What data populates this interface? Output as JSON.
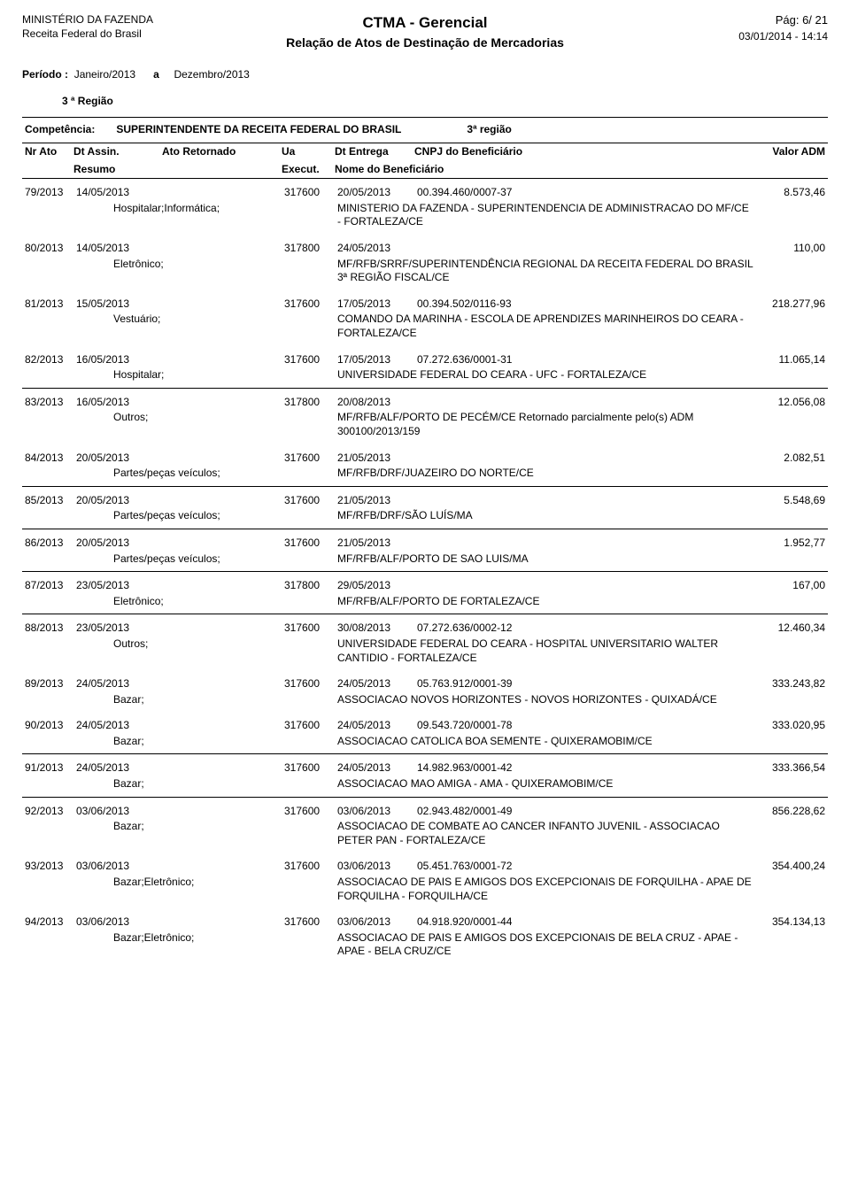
{
  "header": {
    "ministry": "MINISTÉRIO DA FAZENDA",
    "dept": "Receita Federal do Brasil",
    "title": "CTMA - Gerencial",
    "subtitle": "Relação de Atos de Destinação de Mercadorias",
    "page_label": "Pág:",
    "page_value": "6/ 21",
    "datetime": "03/01/2014 - 14:14"
  },
  "period": {
    "label": "Período :",
    "from": "Janeiro/2013",
    "conj": "a",
    "to": "Dezembro/2013"
  },
  "region_title": "3 ª Região",
  "competencia": {
    "label": "Competência:",
    "value": "SUPERINTENDENTE DA RECEITA FEDERAL DO BRASIL",
    "region": "3ª região"
  },
  "cols": {
    "nrato": "Nr Ato",
    "dtassin": "Dt Assin.",
    "retornado": "Ato Retornado",
    "ua": "Ua",
    "dtentrega": "Dt Entrega",
    "cnpj": "CNPJ do Beneficiário",
    "valor": "Valor ADM",
    "resumo": "Resumo",
    "execut": "Execut.",
    "nome": "Nome do Beneficiário"
  },
  "groups": [
    {
      "rule_after": false,
      "records": [
        {
          "nrato": "79/2013",
          "dtassin": "14/05/2013",
          "ua": "317600",
          "dtentrega": "20/05/2013",
          "cnpj": "00.394.460/0007-37",
          "valor": "8.573,46",
          "resumo": "Hospitalar;Informática;",
          "nome": "MINISTERIO DA FAZENDA - SUPERINTENDENCIA DE ADMINISTRACAO DO MF/CE - FORTALEZA/CE"
        },
        {
          "nrato": "80/2013",
          "dtassin": "14/05/2013",
          "ua": "317800",
          "dtentrega": "24/05/2013",
          "cnpj": "",
          "valor": "110,00",
          "resumo": "Eletrônico;",
          "nome": "MF/RFB/SRRF/SUPERINTENDÊNCIA REGIONAL DA RECEITA FEDERAL DO BRASIL 3ª REGIÃO FISCAL/CE"
        },
        {
          "nrato": "81/2013",
          "dtassin": "15/05/2013",
          "ua": "317600",
          "dtentrega": "17/05/2013",
          "cnpj": "00.394.502/0116-93",
          "valor": "218.277,96",
          "resumo": "Vestuário;",
          "nome": "COMANDO DA MARINHA - ESCOLA DE APRENDIZES MARINHEIROS DO CEARA - FORTALEZA/CE"
        },
        {
          "nrato": "82/2013",
          "dtassin": "16/05/2013",
          "ua": "317600",
          "dtentrega": "17/05/2013",
          "cnpj": "07.272.636/0001-31",
          "valor": "11.065,14",
          "resumo": "Hospitalar;",
          "nome": "UNIVERSIDADE FEDERAL DO CEARA - UFC - FORTALEZA/CE"
        }
      ]
    },
    {
      "rule_after": true,
      "records": [
        {
          "nrato": "83/2013",
          "dtassin": "16/05/2013",
          "ua": "317800",
          "dtentrega": "20/08/2013",
          "cnpj": "",
          "valor": "12.056,08",
          "resumo": "Outros;",
          "nome": "MF/RFB/ALF/PORTO DE PECÉM/CE Retornado parcialmente pelo(s) ADM 300100/2013/159"
        },
        {
          "nrato": "84/2013",
          "dtassin": "20/05/2013",
          "ua": "317600",
          "dtentrega": "21/05/2013",
          "cnpj": "",
          "valor": "2.082,51",
          "resumo": "Partes/peças veículos;",
          "nome": "MF/RFB/DRF/JUAZEIRO DO NORTE/CE"
        }
      ]
    },
    {
      "rule_after": true,
      "records": [
        {
          "nrato": "85/2013",
          "dtassin": "20/05/2013",
          "ua": "317600",
          "dtentrega": "21/05/2013",
          "cnpj": "",
          "valor": "5.548,69",
          "resumo": "Partes/peças veículos;",
          "nome": "MF/RFB/DRF/SÃO LUÍS/MA"
        }
      ]
    },
    {
      "rule_after": true,
      "records": [
        {
          "nrato": "86/2013",
          "dtassin": "20/05/2013",
          "ua": "317600",
          "dtentrega": "21/05/2013",
          "cnpj": "",
          "valor": "1.952,77",
          "resumo": "Partes/peças veículos;",
          "nome": "MF/RFB/ALF/PORTO DE SAO LUIS/MA"
        }
      ]
    },
    {
      "rule_after": true,
      "records": [
        {
          "nrato": "87/2013",
          "dtassin": "23/05/2013",
          "ua": "317800",
          "dtentrega": "29/05/2013",
          "cnpj": "",
          "valor": "167,00",
          "resumo": "Eletrônico;",
          "nome": "MF/RFB/ALF/PORTO DE FORTALEZA/CE"
        }
      ]
    },
    {
      "rule_after": true,
      "records": [
        {
          "nrato": "88/2013",
          "dtassin": "23/05/2013",
          "ua": "317600",
          "dtentrega": "30/08/2013",
          "cnpj": "07.272.636/0002-12",
          "valor": "12.460,34",
          "resumo": "Outros;",
          "nome": "UNIVERSIDADE FEDERAL DO CEARA - HOSPITAL UNIVERSITARIO WALTER CANTIDIO - FORTALEZA/CE"
        },
        {
          "nrato": "89/2013",
          "dtassin": "24/05/2013",
          "ua": "317600",
          "dtentrega": "24/05/2013",
          "cnpj": "05.763.912/0001-39",
          "valor": "333.243,82",
          "resumo": "Bazar;",
          "nome": "ASSOCIACAO NOVOS HORIZONTES - NOVOS HORIZONTES - QUIXADÁ/CE"
        },
        {
          "nrato": "90/2013",
          "dtassin": "24/05/2013",
          "ua": "317600",
          "dtentrega": "24/05/2013",
          "cnpj": "09.543.720/0001-78",
          "valor": "333.020,95",
          "resumo": "Bazar;",
          "nome": "ASSOCIACAO CATOLICA BOA SEMENTE - QUIXERAMOBIM/CE"
        }
      ]
    },
    {
      "rule_after": true,
      "records": [
        {
          "nrato": "91/2013",
          "dtassin": "24/05/2013",
          "ua": "317600",
          "dtentrega": "24/05/2013",
          "cnpj": "14.982.963/0001-42",
          "valor": "333.366,54",
          "resumo": "Bazar;",
          "nome": "ASSOCIACAO MAO AMIGA - AMA - QUIXERAMOBIM/CE"
        }
      ]
    },
    {
      "rule_after": false,
      "records": [
        {
          "nrato": "92/2013",
          "dtassin": "03/06/2013",
          "ua": "317600",
          "dtentrega": "03/06/2013",
          "cnpj": "02.943.482/0001-49",
          "valor": "856.228,62",
          "resumo": "Bazar;",
          "nome": "ASSOCIACAO DE COMBATE AO CANCER INFANTO JUVENIL - ASSOCIACAO PETER PAN - FORTALEZA/CE"
        },
        {
          "nrato": "93/2013",
          "dtassin": "03/06/2013",
          "ua": "317600",
          "dtentrega": "03/06/2013",
          "cnpj": "05.451.763/0001-72",
          "valor": "354.400,24",
          "resumo": "Bazar;Eletrônico;",
          "nome": "ASSOCIACAO DE PAIS E AMIGOS DOS EXCEPCIONAIS DE FORQUILHA - APAE DE FORQUILHA - FORQUILHA/CE"
        },
        {
          "nrato": "94/2013",
          "dtassin": "03/06/2013",
          "ua": "317600",
          "dtentrega": "03/06/2013",
          "cnpj": "04.918.920/0001-44",
          "valor": "354.134,13",
          "resumo": "Bazar;Eletrônico;",
          "nome": "ASSOCIACAO DE PAIS E AMIGOS DOS EXCEPCIONAIS DE BELA CRUZ - APAE - APAE - BELA CRUZ/CE"
        }
      ]
    }
  ]
}
